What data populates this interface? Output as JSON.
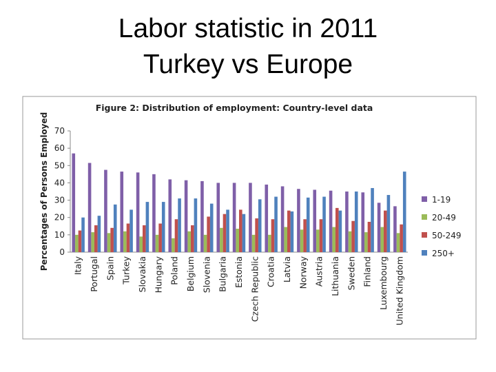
{
  "slide": {
    "title": [
      "Labor statistic in 2011",
      "Turkey vs Europe"
    ]
  },
  "chart_data": {
    "type": "bar",
    "title": "Figure 2: Distribution of employment: Country-level data",
    "y_label": "Percentages of Persons Employed",
    "categories": [
      "Italy",
      "Portugal",
      "Spain",
      "Turkey",
      "Slovakia",
      "Hungary",
      "Poland",
      "Belgium",
      "Slovenia",
      "Bulgaria",
      "Estonia",
      "Czech Republic",
      "Croatia",
      "Latvia",
      "Norway",
      "Austria",
      "Lithuania",
      "Sweden",
      "Finland",
      "Luxembourg",
      "United Kingdom"
    ],
    "series": [
      {
        "name": "1-19",
        "color": "#7f5fa8",
        "values": [
          57,
          51.5,
          47.5,
          46.5,
          46,
          45,
          42,
          41.5,
          41,
          40,
          40,
          40,
          39,
          38,
          36.5,
          36,
          35.5,
          35,
          34.5,
          28.5,
          26.5
        ]
      },
      {
        "name": "20-49",
        "color": "#9bbb59",
        "values": [
          10,
          11.5,
          11,
          12,
          9,
          10,
          8,
          12,
          10,
          14,
          13.5,
          10,
          10,
          14.5,
          13,
          13,
          14.5,
          12,
          11.5,
          14.5,
          11
        ]
      },
      {
        "name": "50-249",
        "color": "#c0504d",
        "values": [
          12.5,
          15.5,
          14,
          16.5,
          15.5,
          16.5,
          19,
          15.5,
          20.5,
          22,
          24.5,
          19.5,
          19,
          24,
          19,
          19,
          25.5,
          18,
          17.5,
          24,
          16
        ]
      },
      {
        "name": "250+",
        "color": "#4f81bd",
        "values": [
          20,
          21,
          27.5,
          24.5,
          29,
          29,
          31,
          31,
          28,
          24.5,
          22,
          30.5,
          32,
          23.5,
          31.5,
          32,
          24,
          35,
          37,
          33,
          46.5
        ]
      }
    ],
    "ylim": [
      0,
      70
    ],
    "yticks": [
      0,
      10,
      20,
      30,
      40,
      50,
      60,
      70
    ],
    "legend": "right"
  }
}
